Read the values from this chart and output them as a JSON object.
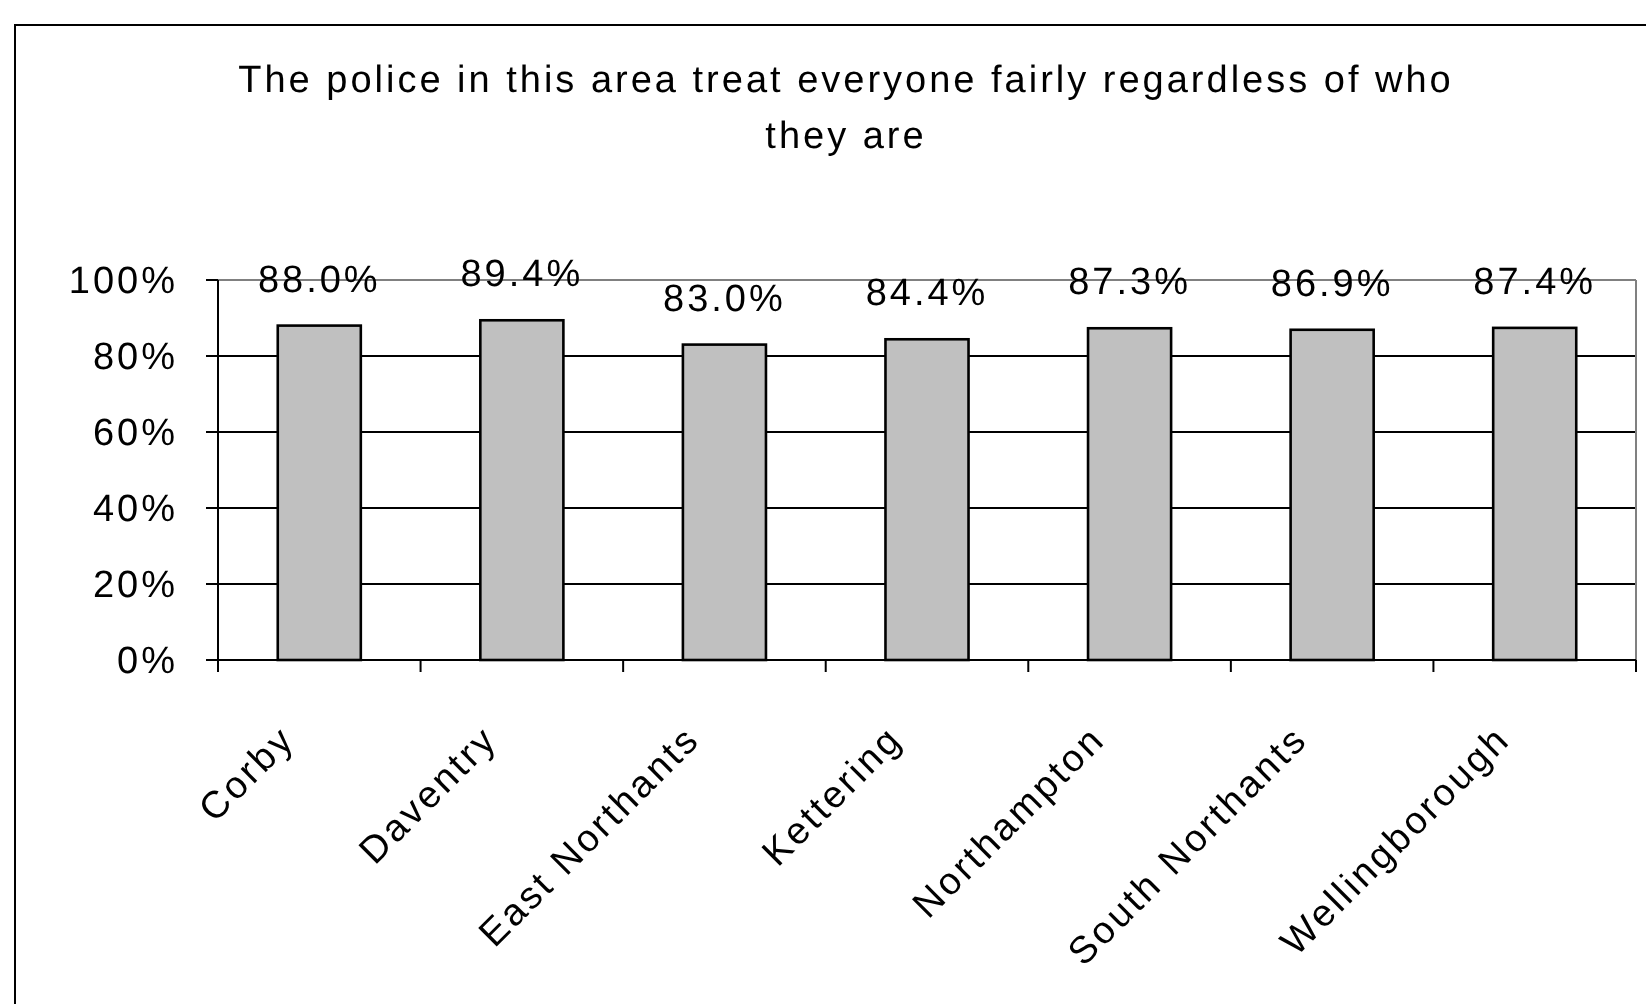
{
  "chart_data": {
    "type": "bar",
    "title": "The police in this area treat everyone fairly regardless of who they are",
    "categories": [
      "Corby",
      "Daventry",
      "East Northants",
      "Kettering",
      "Northampton",
      "South Northants",
      "Wellingborough"
    ],
    "values": [
      88.0,
      89.4,
      83.0,
      84.4,
      87.3,
      86.9,
      87.4
    ],
    "value_labels": [
      "88.0%",
      "89.4%",
      "83.0%",
      "84.4%",
      "87.3%",
      "86.9%",
      "87.4%"
    ],
    "color": "#c0c0c0",
    "ylim": [
      0,
      100
    ],
    "yticks": [
      {
        "value": 0,
        "label": "0%"
      },
      {
        "value": 20,
        "label": "20%"
      },
      {
        "value": 40,
        "label": "40%"
      },
      {
        "value": 60,
        "label": "60%"
      },
      {
        "value": 80,
        "label": "80%"
      },
      {
        "value": 100,
        "label": "100%"
      }
    ],
    "grid": "y"
  }
}
